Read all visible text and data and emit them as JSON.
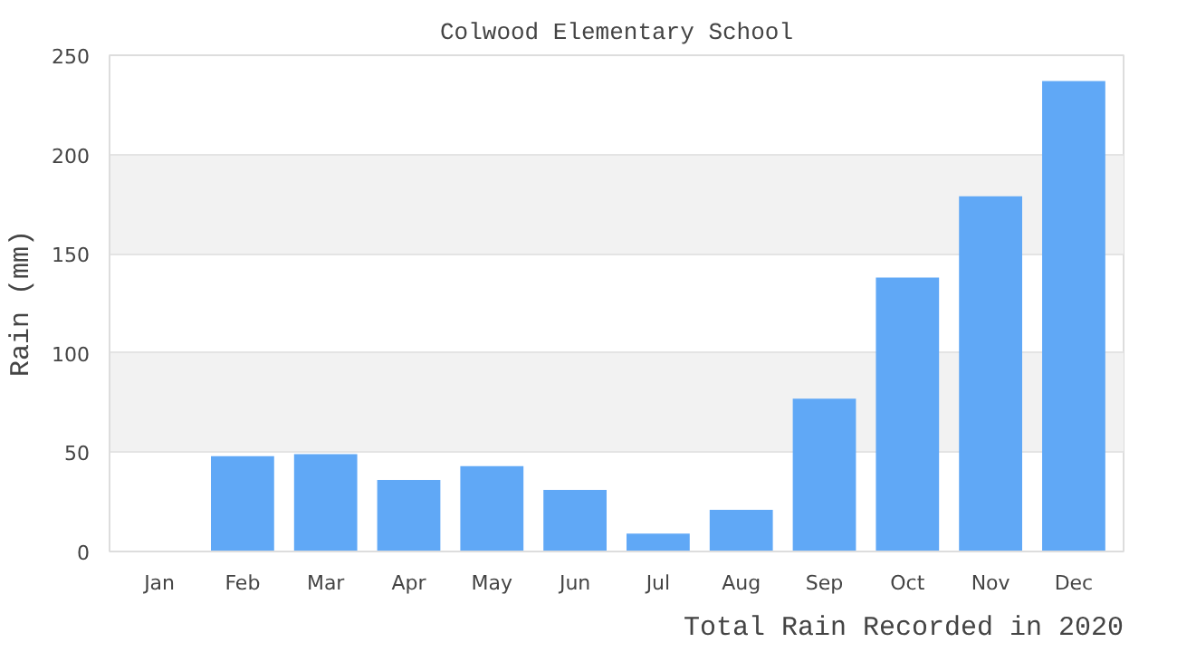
{
  "chart_data": {
    "type": "bar",
    "title": "Colwood Elementary School",
    "xlabel": "Total Rain Recorded in 2020",
    "ylabel": "Rain (mm)",
    "categories": [
      "Jan",
      "Feb",
      "Mar",
      "Apr",
      "May",
      "Jun",
      "Jul",
      "Aug",
      "Sep",
      "Oct",
      "Nov",
      "Dec"
    ],
    "values": [
      0,
      48,
      49,
      36,
      43,
      31,
      9,
      21,
      77,
      138,
      179,
      237
    ],
    "color": "#60a8f6",
    "ylim": [
      0,
      250
    ],
    "yticks": [
      0,
      50,
      100,
      150,
      200,
      250
    ],
    "grid": "y"
  }
}
